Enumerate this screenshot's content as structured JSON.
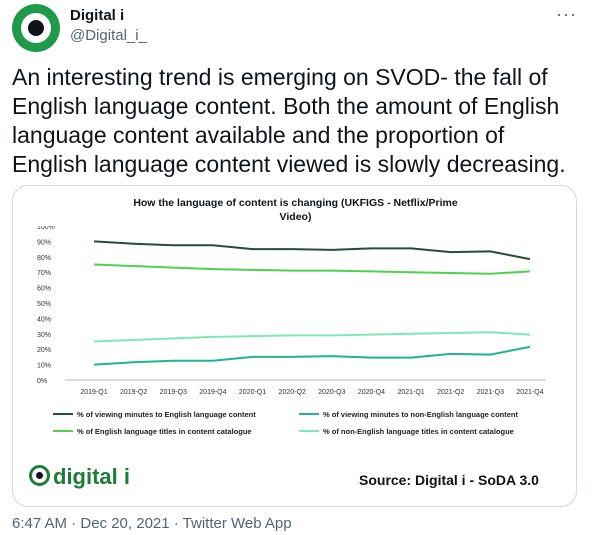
{
  "tweet": {
    "display_name": "Digital i",
    "handle": "@Digital_i_",
    "more_icon": "···",
    "text": "An interesting trend is emerging on SVOD- the fall of English language content. Both the amount of English language content available and the proportion of English language content viewed is slowly decreasing.",
    "timestamp": "6:47 AM · Dec 20, 2021 · Twitter Web App"
  },
  "card": {
    "title_line1": "How the language of content is changing (UKFIGS - Netflix/Prime",
    "title_line2": "Video)",
    "logo_text": "digital i",
    "source": "Source: Digital i - SoDA 3.0"
  },
  "chart_data": {
    "type": "line",
    "x": [
      "2019-Q1",
      "2019-Q2",
      "2019-Q3",
      "2019-Q4",
      "2020-Q1",
      "2020-Q2",
      "2020-Q3",
      "2020-Q4",
      "2021-Q1",
      "2021-Q2",
      "2021-Q3",
      "2021-Q4"
    ],
    "ylim": [
      0,
      100
    ],
    "yticks": [
      "0%",
      "10%",
      "20%",
      "30%",
      "40%",
      "50%",
      "60%",
      "70%",
      "80%",
      "90%",
      "100%"
    ],
    "series": [
      {
        "name": "% of viewing minutes to English language content",
        "color": "#234d3a",
        "values": [
          90,
          88.5,
          87.5,
          87.5,
          85,
          85,
          84.5,
          85.5,
          85.5,
          83,
          83.5,
          78.5
        ]
      },
      {
        "name": "% of viewing minutes to non-English language content",
        "color": "#1fb58f",
        "values": [
          10,
          11.5,
          12.5,
          12.5,
          15,
          15,
          15.5,
          14.5,
          14.5,
          17,
          16.5,
          21.5
        ]
      },
      {
        "name": "% of English language titles in content catalogue",
        "color": "#4fd14f",
        "values": [
          75,
          74,
          73,
          72,
          71.5,
          71,
          71,
          70.5,
          70,
          69.5,
          69,
          70.5
        ]
      },
      {
        "name": "% of non-English language titles in content catalogue",
        "color": "#7fe8b4",
        "values": [
          25,
          26,
          27,
          28,
          28.5,
          29,
          29,
          29.5,
          30,
          30.5,
          31,
          29.5
        ]
      }
    ]
  }
}
